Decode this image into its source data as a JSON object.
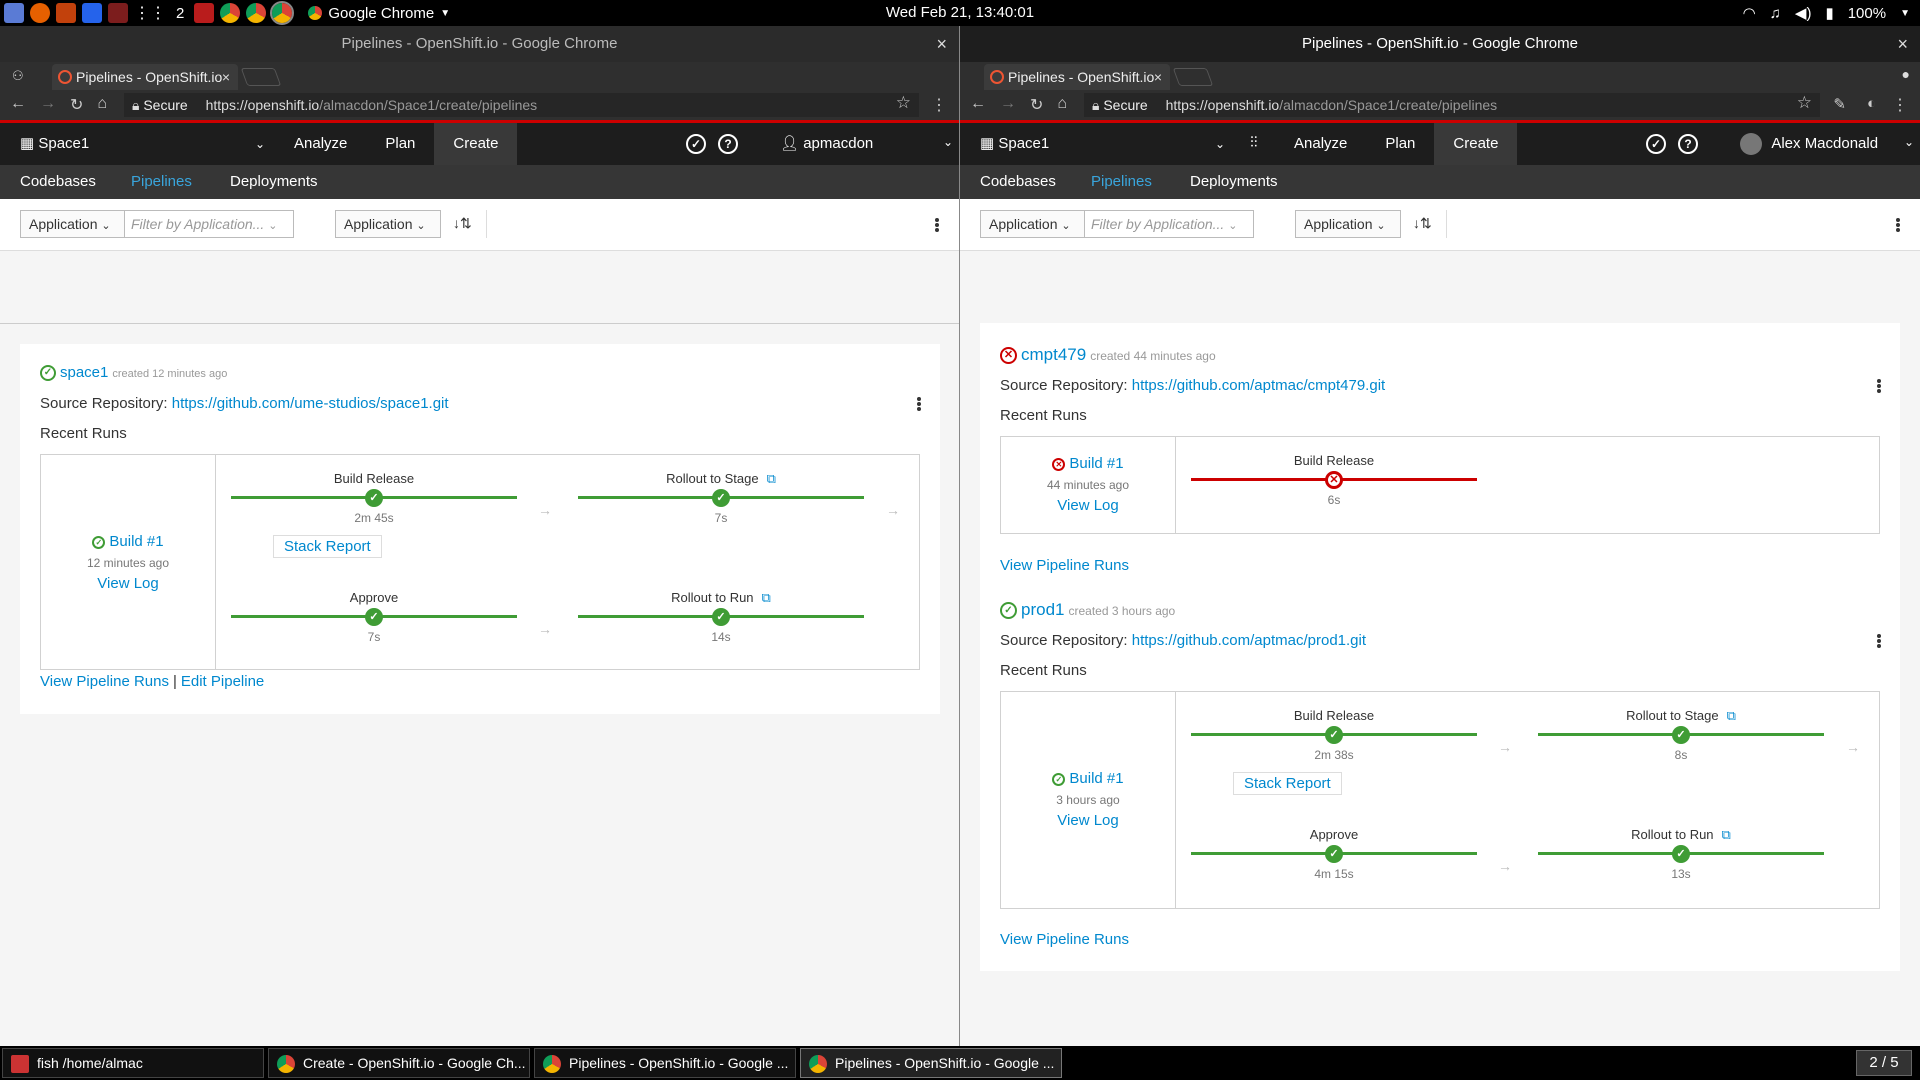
{
  "topbar": {
    "clock": "Wed Feb 21, 13:40:01",
    "workspace_num": "2",
    "active_app": "Google Chrome",
    "battery": "100%"
  },
  "left_window": {
    "title": "Pipelines - OpenShift.io - Google Chrome",
    "tab_label": "Pipelines - OpenShift.io",
    "secure_label": "Secure",
    "url_host": "https://openshift.io",
    "url_path": "/almacdon/Space1/create/pipelines",
    "space": "Space1",
    "menu": [
      "Analyze",
      "Plan",
      "Create"
    ],
    "user": "apmacdon",
    "subnav": [
      "Codebases",
      "Pipelines",
      "Deployments"
    ],
    "filter_type": "Application",
    "filter_placeholder": "Filter by Application...",
    "sort_type": "Application",
    "pipelines": [
      {
        "name": "space1",
        "created": "created 12 minutes ago",
        "source_label": "Source Repository:",
        "repo": "https://github.com/ume-studios/space1.git",
        "recent_runs": "Recent Runs",
        "build": "Build #1",
        "build_age": "12 minutes ago",
        "view_log": "View Log",
        "stages": [
          {
            "name": "Build Release",
            "duration": "2m 45s"
          },
          {
            "name": "Rollout to Stage",
            "duration": "7s"
          },
          {
            "name": "Approve",
            "duration": "7s"
          },
          {
            "name": "Rollout to Run",
            "duration": "14s"
          }
        ],
        "stack_report": "Stack Report",
        "view_runs": "View Pipeline Runs",
        "edit": "Edit Pipeline"
      }
    ]
  },
  "right_window": {
    "title": "Pipelines - OpenShift.io - Google Chrome",
    "tab_label": "Pipelines - OpenShift.io",
    "secure_label": "Secure",
    "url_host": "https://openshift.io",
    "url_path": "/almacdon/Space1/create/pipelines",
    "space": "Space1",
    "menu": [
      "Analyze",
      "Plan",
      "Create"
    ],
    "user": "Alex Macdonald",
    "subnav": [
      "Codebases",
      "Pipelines",
      "Deployments"
    ],
    "filter_type": "Application",
    "filter_placeholder": "Filter by Application...",
    "sort_type": "Application",
    "pipelines": [
      {
        "name": "cmpt479",
        "created": "created 44 minutes ago",
        "source_label": "Source Repository:",
        "repo": "https://github.com/aptmac/cmpt479.git",
        "recent_runs": "Recent Runs",
        "build": "Build #1",
        "build_age": "44 minutes ago",
        "view_log": "View Log",
        "stages": [
          {
            "name": "Build Release",
            "duration": "6s"
          }
        ],
        "view_runs": "View Pipeline Runs"
      },
      {
        "name": "prod1",
        "created": "created 3 hours ago",
        "source_label": "Source Repository:",
        "repo": "https://github.com/aptmac/prod1.git",
        "recent_runs": "Recent Runs",
        "build": "Build #1",
        "build_age": "3 hours ago",
        "view_log": "View Log",
        "stages": [
          {
            "name": "Build Release",
            "duration": "2m 38s"
          },
          {
            "name": "Rollout to Stage",
            "duration": "8s"
          },
          {
            "name": "Approve",
            "duration": "4m 15s"
          },
          {
            "name": "Rollout to Run",
            "duration": "13s"
          }
        ],
        "stack_report": "Stack Report",
        "view_runs": "View Pipeline Runs"
      }
    ]
  },
  "taskbar": {
    "items": [
      "fish  /home/almac",
      "Create - OpenShift.io - Google Ch...",
      "Pipelines - OpenShift.io - Google ...",
      "Pipelines - OpenShift.io - Google ..."
    ],
    "workspace": "2 / 5"
  },
  "colors": {
    "success": "#3f9c35",
    "error": "#cc0000",
    "link": "#0088ce",
    "masthead": "#1d1d1d"
  }
}
